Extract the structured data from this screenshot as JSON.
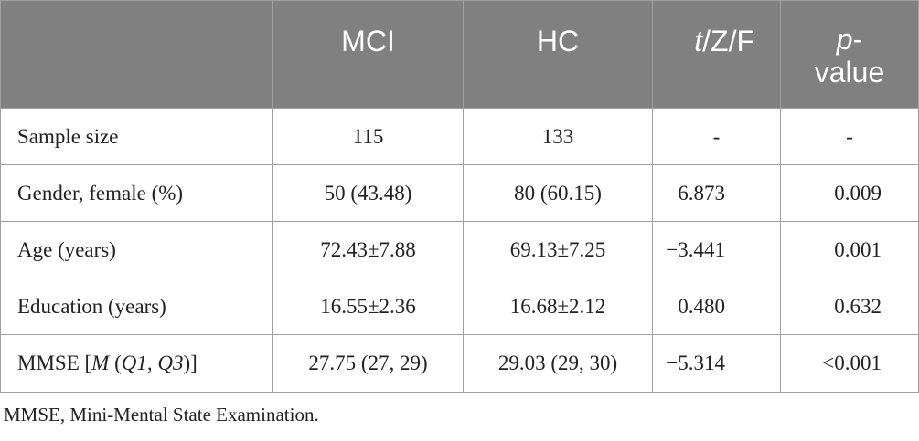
{
  "table": {
    "headers": {
      "mci": "MCI",
      "hc": "HC",
      "stat_t": "t",
      "stat_rest": "/Z/F",
      "p_italic": "p",
      "p_dash": "-",
      "p_value": "value"
    },
    "rows": [
      {
        "label": "Sample size",
        "mci": "115",
        "hc": "133",
        "stat": "-",
        "p": "-"
      },
      {
        "label": "Gender, female (%)",
        "mci": "50 (43.48)",
        "hc": "80 (60.15)",
        "stat": "6.873",
        "p": "0.009"
      },
      {
        "label": "Age (years)",
        "mci": "72.43±7.88",
        "hc": "69.13±7.25",
        "stat": "−3.441",
        "p": "0.001"
      },
      {
        "label": "Education (years)",
        "mci": "16.55±2.36",
        "hc": "16.68±2.12",
        "stat": "0.480",
        "p": "0.632"
      },
      {
        "label_pre": "MMSE [",
        "label_m": "M",
        "label_mid": " (",
        "label_q": "Q1, Q3",
        "label_post": ")]",
        "mci": "27.75 (27, 29)",
        "hc": "29.03 (29, 30)",
        "stat": "−5.314",
        "p": "<0.001"
      }
    ]
  },
  "footnote": "MMSE, Mini-Mental State Examination."
}
